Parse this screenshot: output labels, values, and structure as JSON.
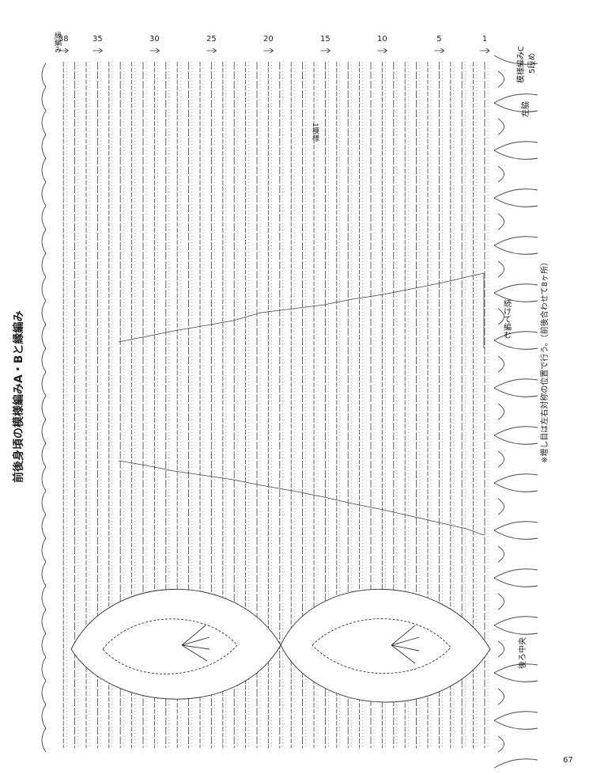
{
  "header": {
    "title": "前後身頃の模様編みA・Bと縁編み"
  },
  "row_labels": [
    38,
    35,
    30,
    25,
    20,
    15,
    10,
    5,
    1
  ],
  "labels": {
    "edging": "縁編み",
    "one_pattern": "1模様",
    "pattern_c": "模様編みC",
    "pattern_c_row": "5段め",
    "left_side": "左脇",
    "continue": "続けて編む",
    "back_center": "後ろ中央"
  },
  "note": "※増し目は左右対称の位置で行う。（前後合わせて8ヶ所）",
  "page_number": "67"
}
